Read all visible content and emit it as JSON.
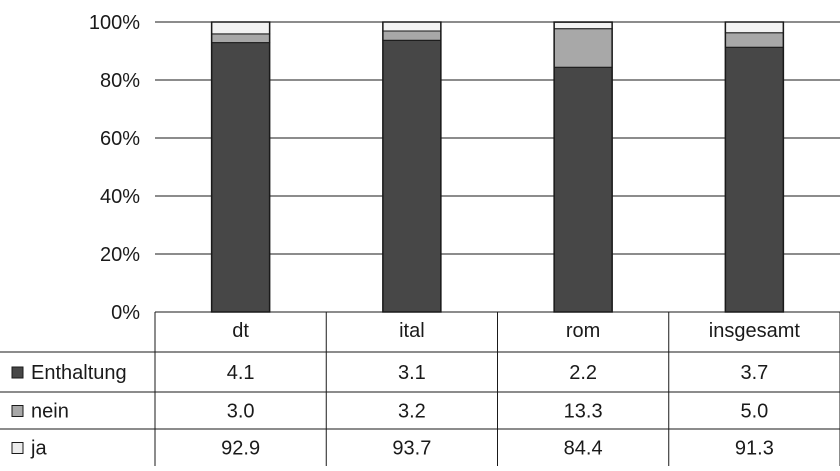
{
  "chart_data": {
    "type": "bar",
    "stacked": true,
    "percent_stacked": true,
    "categories": [
      "dt",
      "ital",
      "rom",
      "insgesamt"
    ],
    "series": [
      {
        "name": "ja",
        "values": [
          92.9,
          93.7,
          84.4,
          91.3
        ],
        "color": "#474747"
      },
      {
        "name": "nein",
        "values": [
          3.0,
          3.2,
          13.3,
          5.0
        ],
        "color": "#a8a8a8"
      },
      {
        "name": "Enthaltung",
        "values": [
          4.1,
          3.1,
          2.2,
          3.7
        ],
        "color": "#f2f2f2"
      }
    ],
    "table_rows": [
      {
        "label": "Enthaltung",
        "values": [
          "4.1",
          "3.1",
          "2.2",
          "3.7"
        ],
        "swatch": "#474747"
      },
      {
        "label": "nein",
        "values": [
          "3.0",
          "3.2",
          "13.3",
          "5.0"
        ],
        "swatch": "#a8a8a8"
      },
      {
        "label": "ja",
        "values": [
          "92.9",
          "93.7",
          "84.4",
          "91.3"
        ],
        "swatch": "#ececec"
      }
    ],
    "ylim": [
      0,
      100
    ],
    "yticks": [
      "0%",
      "20%",
      "40%",
      "60%",
      "80%",
      "100%"
    ],
    "ytick_values": [
      0,
      20,
      40,
      60,
      80,
      100
    ],
    "grid": true,
    "legend_placement": "data-table-left"
  }
}
